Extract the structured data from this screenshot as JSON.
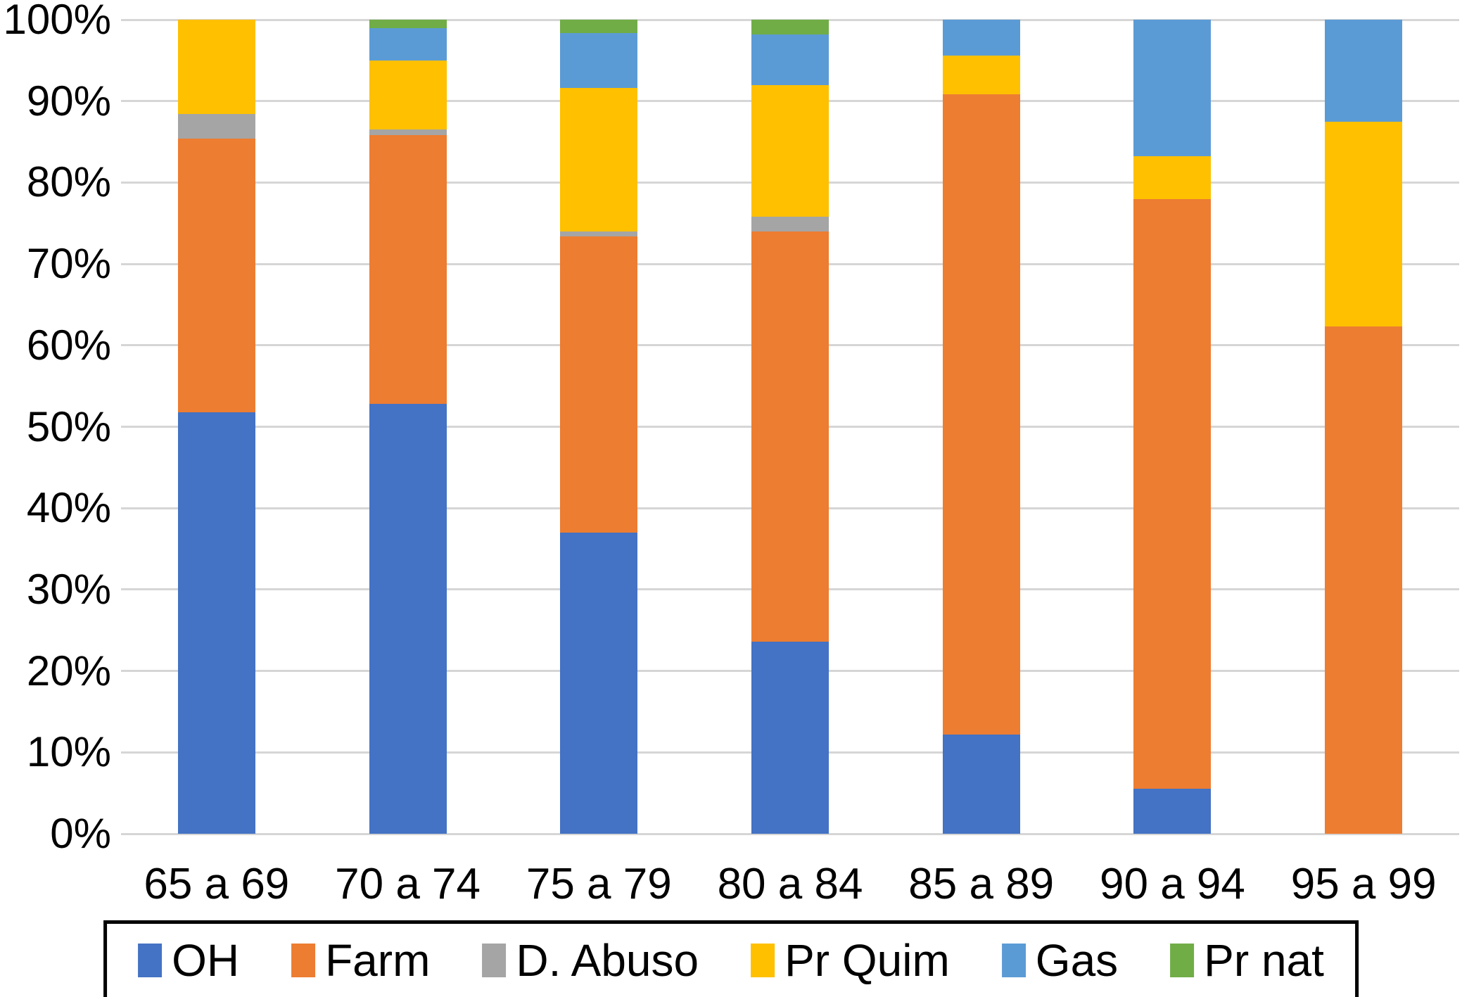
{
  "chart_data": {
    "type": "bar",
    "stacked": true,
    "percent_stacked": true,
    "title": "",
    "xlabel": "",
    "ylabel": "",
    "ylim": [
      0,
      100
    ],
    "grid": true,
    "legend_position": "bottom",
    "y_ticks": [
      "100%",
      "90%",
      "80%",
      "70%",
      "60%",
      "50%",
      "40%",
      "30%",
      "20%",
      "10%",
      "0%"
    ],
    "categories": [
      "65 a 69",
      "70 a 74",
      "75 a 79",
      "80 a 84",
      "85 a 89",
      "90 a 94",
      "95 a 99"
    ],
    "series": [
      {
        "name": "OH",
        "color": "#4472C4",
        "values": [
          51.8,
          52.8,
          37.0,
          23.6,
          12.2,
          5.5,
          0.0
        ]
      },
      {
        "name": "Farm",
        "color": "#ED7D31",
        "values": [
          33.6,
          33.0,
          36.4,
          50.4,
          78.6,
          72.5,
          62.3
        ]
      },
      {
        "name": "D. Abuso",
        "color": "#A5A5A5",
        "values": [
          3.0,
          0.7,
          0.6,
          1.8,
          0.0,
          0.0,
          0.0
        ]
      },
      {
        "name": "Pr Quim",
        "color": "#FFC000",
        "values": [
          11.6,
          8.5,
          17.6,
          16.2,
          4.8,
          5.2,
          25.2
        ]
      },
      {
        "name": "Gas",
        "color": "#5B9BD5",
        "values": [
          0.0,
          4.0,
          6.8,
          6.2,
          4.4,
          16.8,
          12.5
        ]
      },
      {
        "name": "Pr nat",
        "color": "#70AD47",
        "values": [
          0.0,
          1.0,
          1.6,
          1.8,
          0.0,
          0.0,
          0.0
        ]
      }
    ],
    "colors": {
      "gridline": "#d6d6d6",
      "background": "#ffffff",
      "legend_border": "#000000"
    }
  }
}
